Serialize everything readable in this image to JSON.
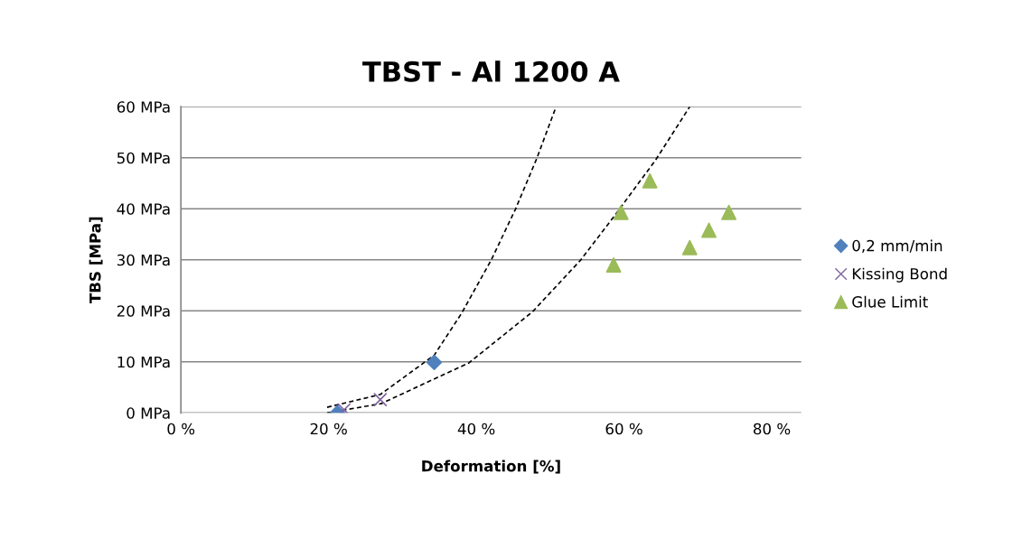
{
  "chart_data": {
    "type": "scatter",
    "title": "TBST - Al 1200 A",
    "xlabel": "Deformation [%]",
    "ylabel": "TBS [MPa]",
    "xlim": [
      0,
      84
    ],
    "xticks": [
      {
        "value": 0,
        "label": "0 %"
      },
      {
        "value": 20,
        "label": "20 %"
      },
      {
        "value": 40,
        "label": "40 %"
      },
      {
        "value": 60,
        "label": "60 %"
      },
      {
        "value": 80,
        "label": "80 %"
      }
    ],
    "ylim": [
      0,
      60
    ],
    "yticks": [
      {
        "value": 0,
        "label": "0 MPa"
      },
      {
        "value": 10,
        "label": "10 MPa"
      },
      {
        "value": 20,
        "label": "20 MPa"
      },
      {
        "value": 30,
        "label": "30 MPa"
      },
      {
        "value": 40,
        "label": "40 MPa"
      },
      {
        "value": 50,
        "label": "50 MPa"
      },
      {
        "value": 60,
        "label": "60 MPa"
      }
    ],
    "grid": "y",
    "legend": "right",
    "series": [
      {
        "name": "0,2 mm/min",
        "color": "#4f81bd",
        "marker": "diamond",
        "x": [
          21.2,
          34.3
        ],
        "values": [
          0,
          9.9
        ]
      },
      {
        "name": "Kissing Bond",
        "color": "#8064a2",
        "marker": "cross",
        "x": [
          22.1,
          27.0
        ],
        "values": [
          0.6,
          2.6
        ]
      },
      {
        "name": "Glue Limit",
        "color": "#9bbb59",
        "marker": "triangle",
        "x": [
          58.6,
          59.6,
          63.5,
          68.9,
          71.5,
          74.2
        ],
        "values": [
          29.0,
          39.3,
          45.5,
          32.4,
          35.8,
          39.3
        ]
      },
      {
        "type": "line",
        "color": "#000000",
        "line_style": "dashed",
        "marker": "none",
        "x": [
          19.8,
          27.0,
          34.3,
          38.0,
          42.0,
          45.3,
          48.2,
          50.8
        ],
        "values": [
          1.1,
          3.6,
          11.3,
          19.5,
          29.9,
          39.9,
          49.9,
          60
        ]
      },
      {
        "type": "line",
        "color": "#000000",
        "line_style": "dashed",
        "marker": "none",
        "x": [
          19.8,
          27.1,
          39.0,
          47.6,
          54.1,
          58.6,
          64.3,
          68.9
        ],
        "values": [
          0,
          1.8,
          9.8,
          19.8,
          29.9,
          38.4,
          49.6,
          60
        ]
      }
    ]
  }
}
